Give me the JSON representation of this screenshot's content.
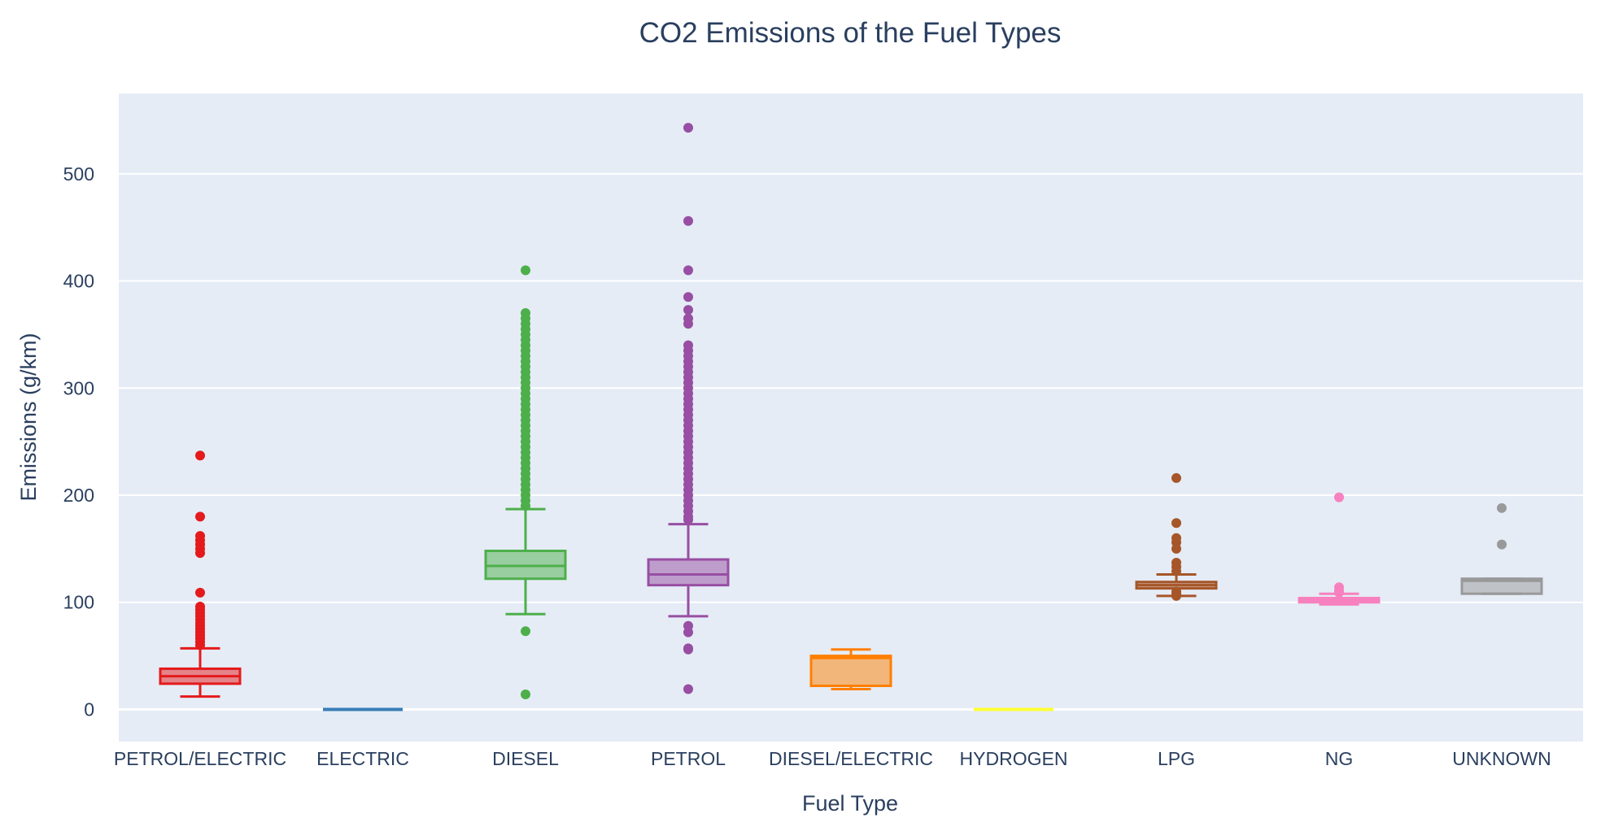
{
  "chart_data": {
    "type": "box",
    "title": "CO2 Emissions of the Fuel Types",
    "xlabel": "Fuel Type",
    "ylabel": "Emissions (g/km)",
    "ylim": [
      -30,
      575
    ],
    "yticks": [
      0,
      100,
      200,
      300,
      400,
      500
    ],
    "grid": true,
    "legend": "none",
    "categories": [
      "PETROL/ELECTRIC",
      "ELECTRIC",
      "DIESEL",
      "PETROL",
      "DIESEL/ELECTRIC",
      "HYDROGEN",
      "LPG",
      "NG",
      "UNKNOWN"
    ],
    "series": [
      {
        "category": "PETROL/ELECTRIC",
        "color": "#e41a1c",
        "min": 12,
        "q1": 24,
        "median": 31,
        "q3": 38,
        "max": 57,
        "outliers": [
          237,
          180,
          162,
          158,
          154,
          150,
          146,
          109,
          96,
          93,
          90,
          87,
          84,
          81,
          78,
          75,
          72,
          69,
          66,
          63,
          60
        ]
      },
      {
        "category": "ELECTRIC",
        "color": "#377eb8",
        "min": 0,
        "q1": 0,
        "median": 0,
        "q3": 0,
        "max": 0,
        "outliers": []
      },
      {
        "category": "DIESEL",
        "color": "#4daf4a",
        "min": 89,
        "q1": 122,
        "median": 134,
        "q3": 148,
        "max": 187,
        "outliers": [
          410,
          370,
          365,
          360,
          355,
          350,
          345,
          340,
          335,
          330,
          325,
          320,
          315,
          310,
          305,
          300,
          295,
          290,
          285,
          280,
          275,
          270,
          265,
          260,
          255,
          250,
          245,
          240,
          235,
          230,
          225,
          220,
          215,
          210,
          205,
          200,
          195,
          190,
          73,
          14
        ]
      },
      {
        "category": "PETROL",
        "color": "#984ea3",
        "min": 87,
        "q1": 116,
        "median": 126,
        "q3": 140,
        "max": 173,
        "outliers": [
          543,
          456,
          410,
          385,
          373,
          365,
          360,
          340,
          335,
          330,
          325,
          320,
          315,
          310,
          305,
          300,
          295,
          290,
          285,
          280,
          275,
          270,
          265,
          260,
          255,
          250,
          245,
          240,
          235,
          230,
          225,
          220,
          215,
          210,
          205,
          200,
          195,
          190,
          185,
          180,
          177,
          78,
          72,
          57,
          56,
          19
        ]
      },
      {
        "category": "DIESEL/ELECTRIC",
        "color": "#ff7f00",
        "min": 19,
        "q1": 22,
        "median": 48,
        "q3": 50,
        "max": 56,
        "outliers": []
      },
      {
        "category": "HYDROGEN",
        "color": "#ffff33",
        "min": 0,
        "q1": 0,
        "median": 0,
        "q3": 0,
        "max": 0,
        "outliers": []
      },
      {
        "category": "LPG",
        "color": "#a65628",
        "min": 106,
        "q1": 113,
        "median": 116,
        "q3": 119,
        "max": 126,
        "outliers": [
          216,
          174,
          160,
          156,
          150,
          137,
          133,
          129,
          110,
          108,
          106
        ]
      },
      {
        "category": "NG",
        "color": "#f781bf",
        "min": 98,
        "q1": 100,
        "median": 102,
        "q3": 104,
        "max": 108,
        "outliers": [
          198,
          114,
          111,
          109
        ]
      },
      {
        "category": "UNKNOWN",
        "color": "#999999",
        "min": 108,
        "q1": 108,
        "median": 120,
        "q3": 122,
        "max": 122,
        "outliers": [
          188,
          154
        ]
      }
    ]
  }
}
